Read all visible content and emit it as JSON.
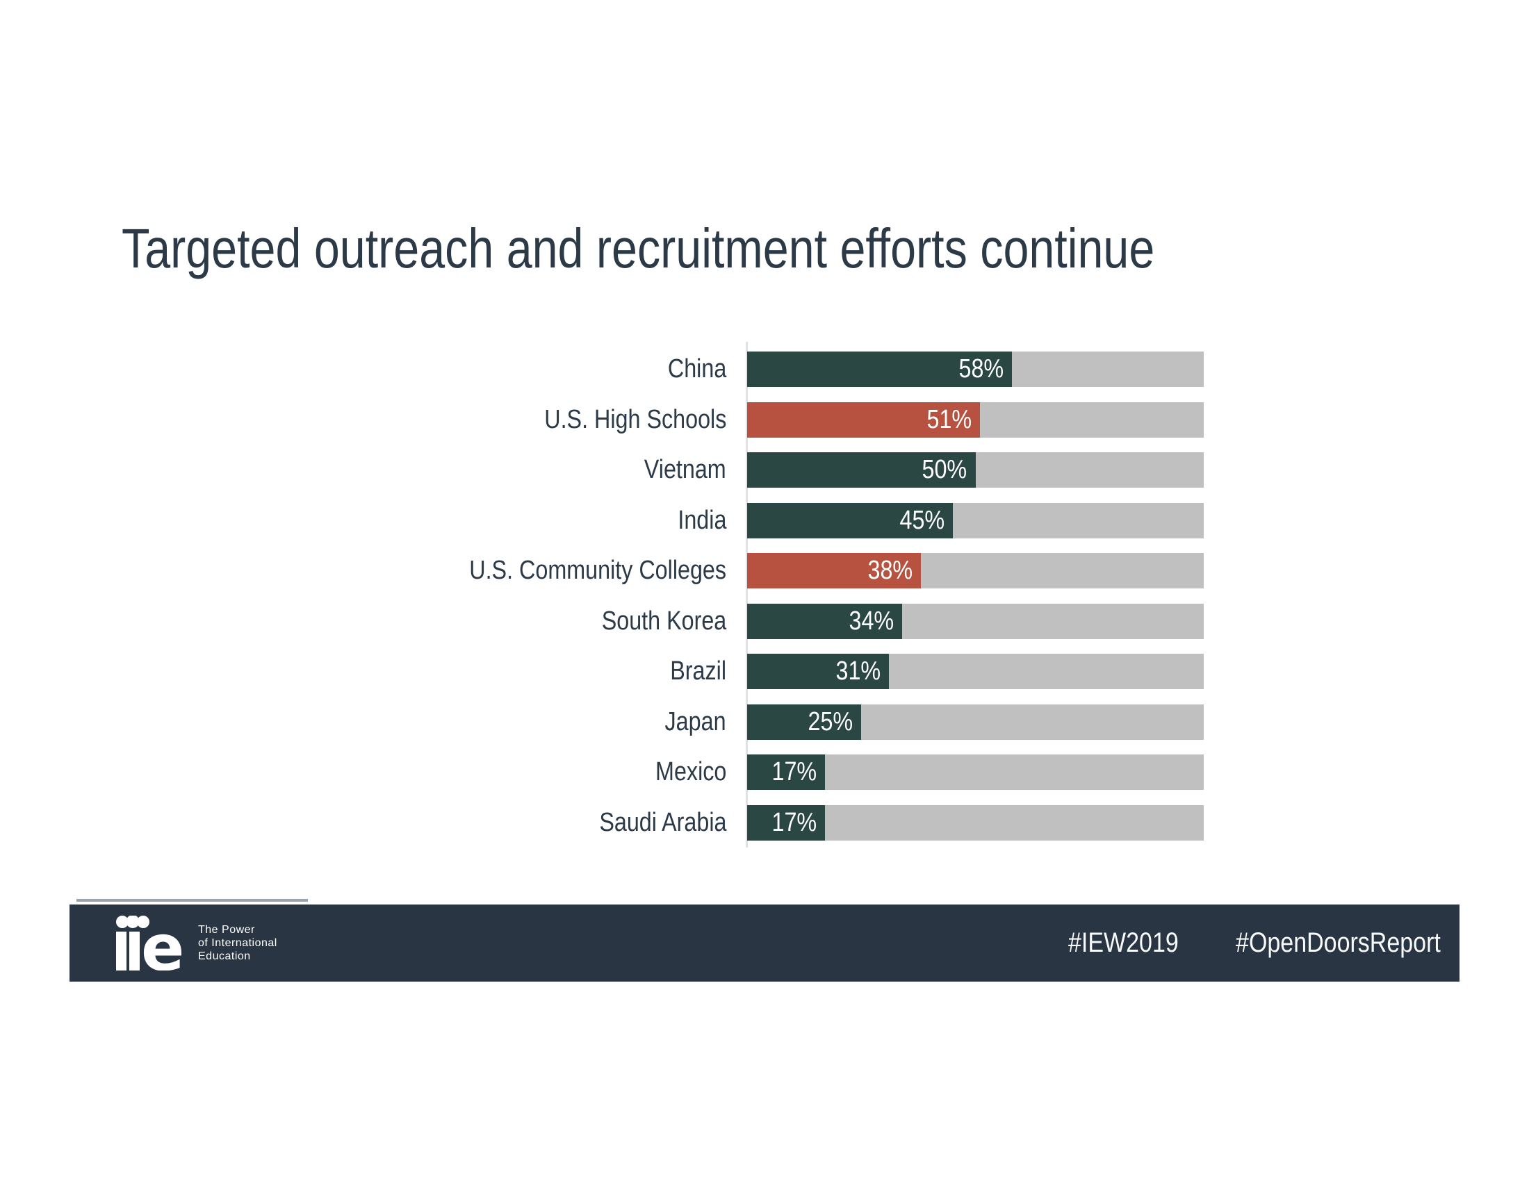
{
  "title": "Targeted outreach and recruitment efforts continue",
  "chart_data": {
    "type": "bar",
    "orientation": "horizontal",
    "title": "Targeted outreach and recruitment efforts continue",
    "xlabel": "",
    "ylabel": "",
    "xlim": [
      0,
      100
    ],
    "grid": false,
    "legend": false,
    "categories": [
      "China",
      "U.S. High Schools",
      "Vietnam",
      "India",
      "U.S. Community Colleges",
      "South Korea",
      "Brazil",
      "Japan",
      "Mexico",
      "Saudi Arabia"
    ],
    "values": [
      58,
      51,
      50,
      45,
      38,
      34,
      31,
      25,
      17,
      17
    ],
    "value_labels": [
      "58%",
      "51%",
      "50%",
      "45%",
      "38%",
      "34%",
      "31%",
      "25%",
      "17%",
      "17%"
    ],
    "highlighted": [
      false,
      true,
      false,
      false,
      true,
      false,
      false,
      false,
      false,
      false
    ],
    "bar_color": "#2A4744",
    "highlight_color": "#B6523F",
    "track_color": "#C1C0C0"
  },
  "footer": {
    "background_color": "#2A3544",
    "logo_text": "iie",
    "tagline": [
      "The Power",
      "of International",
      "Education"
    ],
    "hashtags": [
      "#IEW2019",
      "#OpenDoorsReport"
    ]
  },
  "colors": {
    "title_text": "#2C3A47",
    "bar_teal": "#2A4744",
    "bar_red": "#B6523F",
    "track_gray": "#C1C0C0",
    "footer_navy": "#2A3544",
    "axis_line": "#E2E2E6"
  }
}
